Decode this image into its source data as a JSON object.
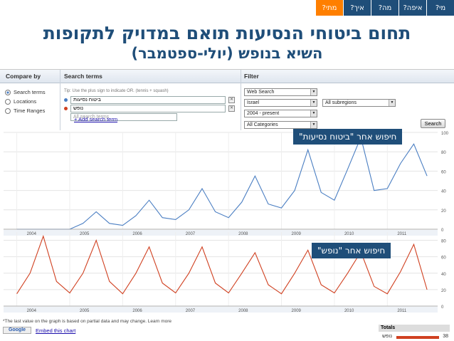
{
  "tabs": [
    {
      "label": "מי?",
      "active": false
    },
    {
      "label": "איפה?",
      "active": false
    },
    {
      "label": "מה?",
      "active": false
    },
    {
      "label": "איך?",
      "active": false
    },
    {
      "label": "מתי?",
      "active": true
    }
  ],
  "title_line1": "תחום ביטוחי הנסיעות תואם במדויק לתקופות",
  "title_line2": "השיא בנופש (יולי-ספטמבר)",
  "compare_by": {
    "header": "Compare by",
    "options": [
      "Search terms",
      "Locations",
      "Time Ranges"
    ],
    "selected": 0
  },
  "search_terms": {
    "header": "Search terms",
    "tip": "Tip: Use the plus sign to indicate OR. (tennis + squash)",
    "term1_value": "ביטוח נסיעות",
    "term2_value": "נופש",
    "term3_placeholder": "All search terms",
    "add_link": "+ Add search term",
    "colors": [
      "#4a7ec2",
      "#d04020"
    ]
  },
  "filter": {
    "header": "Filter",
    "property": "Web Search",
    "country": "Israel",
    "subregion": "All subregions",
    "date": "2004 - present",
    "category": "All Categories",
    "search_button": "Search"
  },
  "callout_top": "חיפוש אחר \"ביטוח נסיעות\"",
  "callout_bottom": "חיפוש אחר \"נופש\"",
  "footnote": "*The last value on the graph is based on partial data and may change. Learn more",
  "google_label": "Google",
  "embed_link": "Embed this chart",
  "totals": {
    "header": "Totals",
    "label": "נופש",
    "value": "38"
  },
  "chart_data": [
    {
      "type": "line",
      "series": [
        {
          "name": "ביטוח נסיעות",
          "color": "#4a7ec2"
        }
      ],
      "x_ticks": [
        "2004",
        "2005",
        "2006",
        "2007",
        "2008",
        "2009",
        "2010",
        "2011"
      ],
      "y_ticks": [
        0,
        20,
        40,
        60,
        80,
        100
      ],
      "ylim": [
        0,
        100
      ],
      "x": [
        2004.0,
        2004.25,
        2004.5,
        2004.75,
        2005.0,
        2005.25,
        2005.5,
        2005.75,
        2006.0,
        2006.25,
        2006.5,
        2006.75,
        2007.0,
        2007.25,
        2007.5,
        2007.75,
        2008.0,
        2008.25,
        2008.5,
        2008.75,
        2009.0,
        2009.25,
        2009.5,
        2009.75,
        2010.0,
        2010.25,
        2010.5,
        2010.75,
        2011.0,
        2011.25,
        2011.5,
        2011.75
      ],
      "values": [
        0,
        0,
        0,
        0,
        0,
        6,
        18,
        6,
        4,
        14,
        30,
        12,
        10,
        20,
        42,
        18,
        12,
        28,
        55,
        26,
        22,
        40,
        82,
        38,
        30,
        62,
        95,
        40,
        42,
        68,
        88,
        55
      ]
    },
    {
      "type": "line",
      "series": [
        {
          "name": "נופש",
          "color": "#d04020"
        }
      ],
      "x_ticks": [
        "2004",
        "2005",
        "2006",
        "2007",
        "2008",
        "2009",
        "2010",
        "2011"
      ],
      "y_ticks": [
        0,
        20,
        40,
        60,
        80
      ],
      "ylim": [
        0,
        90
      ],
      "x": [
        2004.0,
        2004.25,
        2004.5,
        2004.75,
        2005.0,
        2005.25,
        2005.5,
        2005.75,
        2006.0,
        2006.25,
        2006.5,
        2006.75,
        2007.0,
        2007.25,
        2007.5,
        2007.75,
        2008.0,
        2008.25,
        2008.5,
        2008.75,
        2009.0,
        2009.25,
        2009.5,
        2009.75,
        2010.0,
        2010.25,
        2010.5,
        2010.75,
        2011.0,
        2011.25,
        2011.5,
        2011.75
      ],
      "values": [
        15,
        40,
        85,
        30,
        16,
        40,
        80,
        30,
        15,
        40,
        72,
        28,
        16,
        40,
        72,
        28,
        16,
        40,
        65,
        26,
        15,
        40,
        68,
        26,
        16,
        40,
        66,
        24,
        15,
        42,
        75,
        20
      ]
    }
  ]
}
